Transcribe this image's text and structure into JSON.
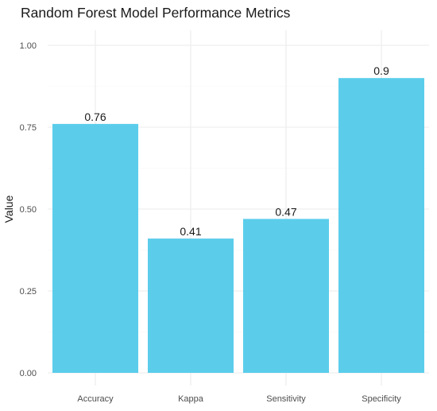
{
  "chart_data": {
    "type": "bar",
    "title": "Random Forest Model Performance Metrics",
    "xlabel": "",
    "ylabel": "Value",
    "categories": [
      "Accuracy",
      "Kappa",
      "Sensitivity",
      "Specificity"
    ],
    "values": [
      0.76,
      0.41,
      0.47,
      0.9
    ],
    "data_labels": [
      "0.76",
      "0.41",
      "0.47",
      "0.9"
    ],
    "ylim": [
      0,
      1
    ],
    "yticks": [
      0,
      0.25,
      0.5,
      0.75,
      1
    ],
    "ytick_labels": [
      "0.00",
      "0.25",
      "0.50",
      "0.75",
      "1.00"
    ],
    "grid": true,
    "legend": "none",
    "colors": {
      "bar": "#5bcdeb",
      "grid_major": "#ebebeb",
      "grid_minor": "#f5f5f5"
    }
  }
}
